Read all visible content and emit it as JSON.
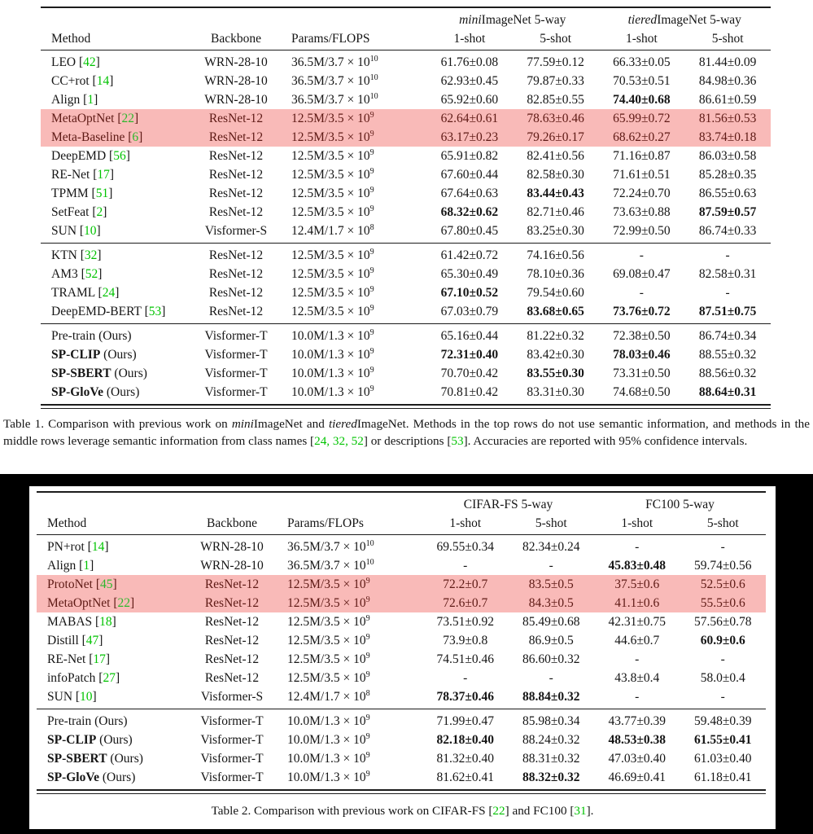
{
  "colors": {
    "citation_green": "#00c300",
    "highlight_pink": "#f9bab8",
    "highlight_text": "#5e1a15",
    "rule_black": "#1c1c1c"
  },
  "table1": {
    "header": {
      "col1": "Method",
      "col2": "Backbone",
      "col3": "Params/FLOPS",
      "group1": "*mini*ImageNet 5-way",
      "group2": "*tiered*ImageNet 5-way",
      "sub": [
        "1-shot",
        "5-shot",
        "1-shot",
        "5-shot"
      ]
    },
    "groups": [
      {
        "rows": [
          {
            "method": "LEO [42]",
            "backbone": "WRN-28-10",
            "params": "36.5M/3.7 × 10^10",
            "vals": [
              "61.76±0.08",
              "77.59±0.12",
              "66.33±0.05",
              "81.44±0.09"
            ],
            "hl": false
          },
          {
            "method": "CC+rot [14]",
            "backbone": "WRN-28-10",
            "params": "36.5M/3.7 × 10^10",
            "vals": [
              "62.93±0.45",
              "79.87±0.33",
              "70.53±0.51",
              "84.98±0.36"
            ],
            "hl": false
          },
          {
            "method": "Align [1]",
            "backbone": "WRN-28-10",
            "params": "36.5M/3.7 × 10^10",
            "vals": [
              "65.92±0.60",
              "82.85±0.55",
              "**74.40±0.68**",
              "86.61±0.59"
            ],
            "hl": false
          },
          {
            "method": "MetaOptNet [22]",
            "backbone": "ResNet-12",
            "params": "12.5M/3.5 × 10^9",
            "vals": [
              "62.64±0.61",
              "78.63±0.46",
              "65.99±0.72",
              "81.56±0.53"
            ],
            "hl": true
          },
          {
            "method": "Meta-Baseline [6]",
            "backbone": "ResNet-12",
            "params": "12.5M/3.5 × 10^9",
            "vals": [
              "63.17±0.23",
              "79.26±0.17",
              "68.62±0.27",
              "83.74±0.18"
            ],
            "hl": true
          },
          {
            "method": "DeepEMD [56]",
            "backbone": "ResNet-12",
            "params": "12.5M/3.5 × 10^9",
            "vals": [
              "65.91±0.82",
              "82.41±0.56",
              "71.16±0.87",
              "86.03±0.58"
            ],
            "hl": false
          },
          {
            "method": "RE-Net [17]",
            "backbone": "ResNet-12",
            "params": "12.5M/3.5 × 10^9",
            "vals": [
              "67.60±0.44",
              "82.58±0.30",
              "71.61±0.51",
              "85.28±0.35"
            ],
            "hl": false
          },
          {
            "method": "TPMM [51]",
            "backbone": "ResNet-12",
            "params": "12.5M/3.5 × 10^9",
            "vals": [
              "67.64±0.63",
              "**83.44±0.43**",
              "72.24±0.70",
              "86.55±0.63"
            ],
            "hl": false
          },
          {
            "method": "SetFeat [2]",
            "backbone": "ResNet-12",
            "params": "12.5M/3.5 × 10^9",
            "vals": [
              "**68.32±0.62**",
              "82.71±0.46",
              "73.63±0.88",
              "**87.59±0.57**"
            ],
            "hl": false
          },
          {
            "method": "SUN [10]",
            "backbone": "Visformer-S",
            "params": "12.4M/1.7 × 10^8",
            "vals": [
              "67.80±0.45",
              "83.25±0.30",
              "72.99±0.50",
              "86.74±0.33"
            ],
            "hl": false
          }
        ]
      },
      {
        "rows": [
          {
            "method": "KTN [32]",
            "backbone": "ResNet-12",
            "params": "12.5M/3.5 × 10^9",
            "vals": [
              "61.42±0.72",
              "74.16±0.56",
              "-",
              "-"
            ],
            "hl": false
          },
          {
            "method": "AM3 [52]",
            "backbone": "ResNet-12",
            "params": "12.5M/3.5 × 10^9",
            "vals": [
              "65.30±0.49",
              "78.10±0.36",
              "69.08±0.47",
              "82.58±0.31"
            ],
            "hl": false
          },
          {
            "method": "TRAML [24]",
            "backbone": "ResNet-12",
            "params": "12.5M/3.5 × 10^9",
            "vals": [
              "**67.10±0.52**",
              "79.54±0.60",
              "-",
              "-"
            ],
            "hl": false
          },
          {
            "method": "DeepEMD-BERT [53]",
            "backbone": "ResNet-12",
            "params": "12.5M/3.5 × 10^9",
            "vals": [
              "67.03±0.79",
              "**83.68±0.65**",
              "**73.76±0.72**",
              "**87.51±0.75**"
            ],
            "hl": false
          }
        ]
      },
      {
        "rows": [
          {
            "method": "Pre-train (Ours)",
            "backbone": "Visformer-T",
            "params": "10.0M/1.3 × 10^9",
            "vals": [
              "65.16±0.44",
              "81.22±0.32",
              "72.38±0.50",
              "86.74±0.34"
            ],
            "hl": false
          },
          {
            "method": "**SP-CLIP** (Ours)",
            "backbone": "Visformer-T",
            "params": "10.0M/1.3 × 10^9",
            "vals": [
              "**72.31±0.40**",
              "83.42±0.30",
              "**78.03±0.46**",
              "88.55±0.32"
            ],
            "hl": false
          },
          {
            "method": "**SP-SBERT** (Ours)",
            "backbone": "Visformer-T",
            "params": "10.0M/1.3 × 10^9",
            "vals": [
              "70.70±0.42",
              "**83.55±0.30**",
              "73.31±0.50",
              "88.56±0.32"
            ],
            "hl": false
          },
          {
            "method": "**SP-GloVe** (Ours)",
            "backbone": "Visformer-T",
            "params": "10.0M/1.3 × 10^9",
            "vals": [
              "70.81±0.42",
              "83.31±0.30",
              "74.68±0.50",
              "**88.64±0.31**"
            ],
            "hl": false
          }
        ]
      }
    ],
    "caption": "Table 1. Comparison with previous work on *mini*ImageNet and *tiered*ImageNet. Methods in the top rows do not use semantic information, and methods in the middle rows leverage semantic information from class names [24, 32, 52] or descriptions [53]. Accuracies are reported with 95% confidence intervals."
  },
  "table2": {
    "header": {
      "col1": "Method",
      "col2": "Backbone",
      "col3": "Params/FLOPs",
      "group1": "CIFAR-FS 5-way",
      "group2": "FC100 5-way",
      "sub": [
        "1-shot",
        "5-shot",
        "1-shot",
        "5-shot"
      ]
    },
    "groups": [
      {
        "rows": [
          {
            "method": "PN+rot [14]",
            "backbone": "WRN-28-10",
            "params": "36.5M/3.7 × 10^10",
            "vals": [
              "69.55±0.34",
              "82.34±0.24",
              "-",
              "-"
            ],
            "hl": false
          },
          {
            "method": "Align [1]",
            "backbone": "WRN-28-10",
            "params": "36.5M/3.7 × 10^10",
            "vals": [
              "-",
              "-",
              "**45.83±0.48**",
              "59.74±0.56"
            ],
            "hl": false
          },
          {
            "method": "ProtoNet [45]",
            "backbone": "ResNet-12",
            "params": "12.5M/3.5 × 10^9",
            "vals": [
              "72.2±0.7",
              "83.5±0.5",
              "37.5±0.6",
              "52.5±0.6"
            ],
            "hl": true
          },
          {
            "method": "MetaOptNet [22]",
            "backbone": "ResNet-12",
            "params": "12.5M/3.5 × 10^9",
            "vals": [
              "72.6±0.7",
              "84.3±0.5",
              "41.1±0.6",
              "55.5±0.6"
            ],
            "hl": true
          },
          {
            "method": "MABAS [18]",
            "backbone": "ResNet-12",
            "params": "12.5M/3.5 × 10^9",
            "vals": [
              "73.51±0.92",
              "85.49±0.68",
              "42.31±0.75",
              "57.56±0.78"
            ],
            "hl": false
          },
          {
            "method": "Distill [47]",
            "backbone": "ResNet-12",
            "params": "12.5M/3.5 × 10^9",
            "vals": [
              "73.9±0.8",
              "86.9±0.5",
              "44.6±0.7",
              "**60.9±0.6**"
            ],
            "hl": false
          },
          {
            "method": "RE-Net [17]",
            "backbone": "ResNet-12",
            "params": "12.5M/3.5 × 10^9",
            "vals": [
              "74.51±0.46",
              "86.60±0.32",
              "-",
              "-"
            ],
            "hl": false
          },
          {
            "method": "infoPatch [27]",
            "backbone": "ResNet-12",
            "params": "12.5M/3.5 × 10^9",
            "vals": [
              "-",
              "-",
              "43.8±0.4",
              "58.0±0.4"
            ],
            "hl": false
          },
          {
            "method": "SUN [10]",
            "backbone": "Visformer-S",
            "params": "12.4M/1.7 × 10^8",
            "vals": [
              "**78.37±0.46**",
              "**88.84±0.32**",
              "-",
              "-"
            ],
            "hl": false
          }
        ]
      },
      {
        "rows": [
          {
            "method": "Pre-train (Ours)",
            "backbone": "Visformer-T",
            "params": "10.0M/1.3 × 10^9",
            "vals": [
              "71.99±0.47",
              "85.98±0.34",
              "43.77±0.39",
              "59.48±0.39"
            ],
            "hl": false
          },
          {
            "method": "**SP-CLIP** (Ours)",
            "backbone": "Visformer-T",
            "params": "10.0M/1.3 × 10^9",
            "vals": [
              "**82.18±0.40**",
              "88.24±0.32",
              "**48.53±0.38**",
              "**61.55±0.41**"
            ],
            "hl": false
          },
          {
            "method": "**SP-SBERT** (Ours)",
            "backbone": "Visformer-T",
            "params": "10.0M/1.3 × 10^9",
            "vals": [
              "81.32±0.40",
              "88.31±0.32",
              "47.03±0.40",
              "61.03±0.40"
            ],
            "hl": false
          },
          {
            "method": "**SP-GloVe** (Ours)",
            "backbone": "Visformer-T",
            "params": "10.0M/1.3 × 10^9",
            "vals": [
              "81.62±0.41",
              "**88.32±0.32**",
              "46.69±0.41",
              "61.18±0.41"
            ],
            "hl": false
          }
        ]
      }
    ],
    "caption": "Table 2. Comparison with previous work on CIFAR-FS [22] and FC100 [31]."
  }
}
